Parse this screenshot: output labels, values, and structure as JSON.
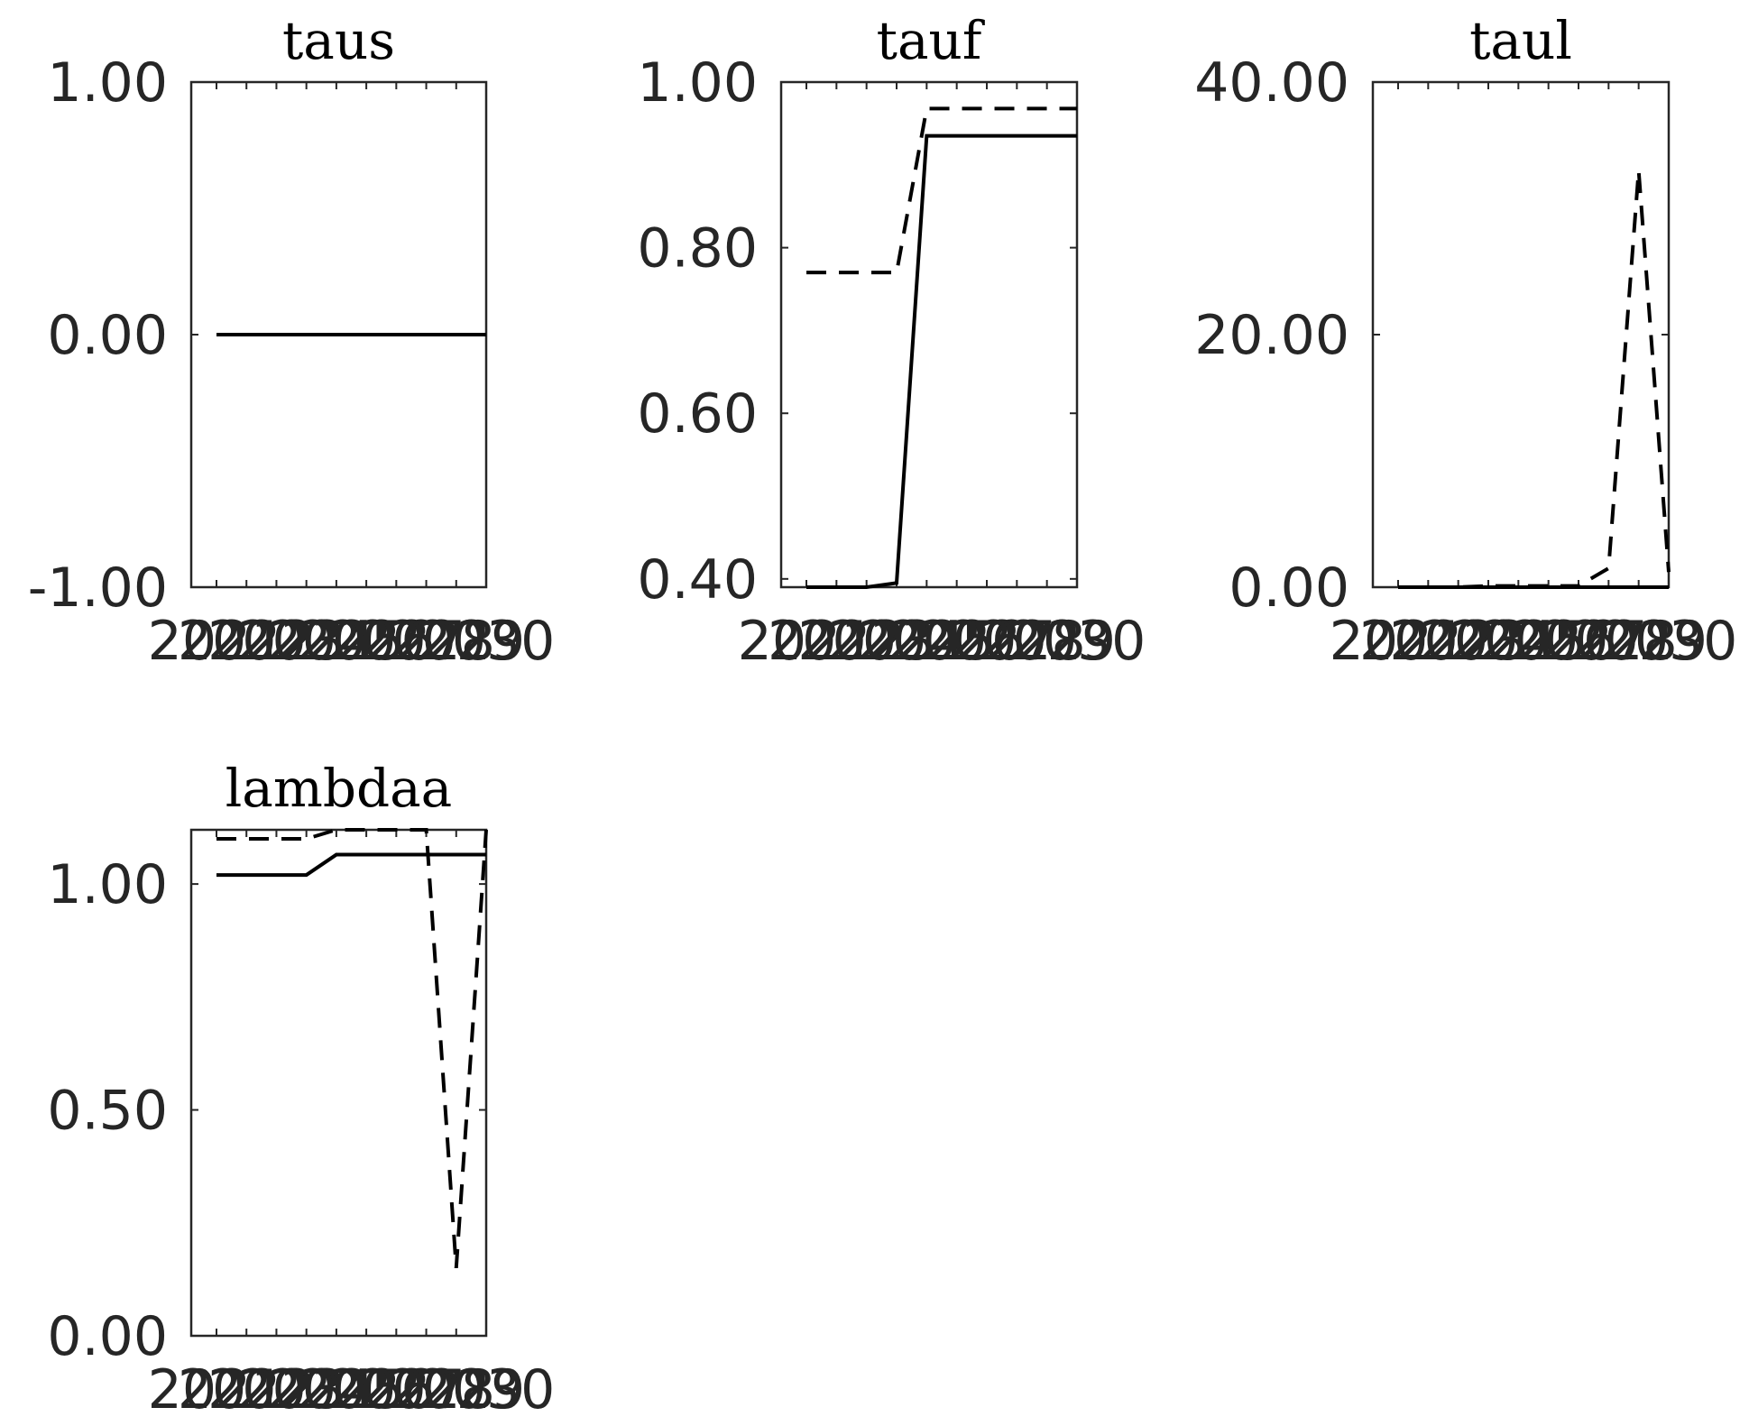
{
  "chart_data": [
    {
      "type": "line",
      "title": "taus",
      "x": [
        2021,
        2022,
        2023,
        2024,
        2025,
        2026,
        2027,
        2028,
        2029,
        2030
      ],
      "xtick_labels": [
        "2021",
        "2022",
        "2023",
        "2024",
        "2025",
        "2026",
        "2027",
        "2028",
        "2029",
        "2030"
      ],
      "ylim": [
        -1,
        1
      ],
      "yticks": [
        -1,
        0,
        1
      ],
      "ytick_labels": [
        "-1.00",
        "0.00",
        "1.00"
      ],
      "series": [
        {
          "style": "solid",
          "values": [
            0,
            0,
            0,
            0,
            0,
            0,
            0,
            0,
            0,
            0
          ]
        }
      ]
    },
    {
      "type": "line",
      "title": "tauf",
      "x": [
        2021,
        2022,
        2023,
        2024,
        2025,
        2026,
        2027,
        2028,
        2029,
        2030
      ],
      "xtick_labels": [
        "2021",
        "2022",
        "2023",
        "2024",
        "2025",
        "2026",
        "2027",
        "2028",
        "2029",
        "2030"
      ],
      "ylim": [
        0.39,
        1.0
      ],
      "yticks": [
        0.4,
        0.6,
        0.8,
        1.0
      ],
      "ytick_labels": [
        "0.40",
        "0.60",
        "0.80",
        "1.00"
      ],
      "series": [
        {
          "style": "solid",
          "values": [
            0.39,
            0.39,
            0.39,
            0.395,
            0.935,
            0.935,
            0.935,
            0.935,
            0.935,
            0.935
          ]
        },
        {
          "style": "dashed",
          "values": [
            0.77,
            0.77,
            0.77,
            0.77,
            0.968,
            0.968,
            0.968,
            0.968,
            0.968,
            0.968
          ]
        }
      ]
    },
    {
      "type": "line",
      "title": "taul",
      "x": [
        2021,
        2022,
        2023,
        2024,
        2025,
        2026,
        2027,
        2028,
        2029,
        2030
      ],
      "xtick_labels": [
        "2021",
        "2022",
        "2023",
        "2024",
        "2025",
        "2026",
        "2027",
        "2028",
        "2029",
        "2030"
      ],
      "ylim": [
        0,
        40
      ],
      "yticks": [
        0,
        20,
        40
      ],
      "ytick_labels": [
        "0.00",
        "20.00",
        "40.00"
      ],
      "series": [
        {
          "style": "solid",
          "values": [
            0,
            0,
            0,
            0,
            0,
            0,
            0,
            0,
            0,
            0
          ]
        },
        {
          "style": "dashed",
          "values": [
            0,
            0,
            0,
            0.1,
            0.1,
            0.1,
            0.1,
            1.5,
            33,
            1.2
          ]
        }
      ]
    },
    {
      "type": "line",
      "title": "lambdaa",
      "x": [
        2021,
        2022,
        2023,
        2024,
        2025,
        2026,
        2027,
        2028,
        2029,
        2030
      ],
      "xtick_labels": [
        "2021",
        "2022",
        "2023",
        "2024",
        "2025",
        "2026",
        "2027",
        "2028",
        "2029",
        "2030"
      ],
      "ylim": [
        0,
        1.12
      ],
      "yticks": [
        0,
        0.5,
        1.0
      ],
      "ytick_labels": [
        "0.00",
        "0.50",
        "1.00"
      ],
      "series": [
        {
          "style": "solid",
          "values": [
            1.02,
            1.02,
            1.02,
            1.02,
            1.065,
            1.065,
            1.065,
            1.065,
            1.065,
            1.065
          ]
        },
        {
          "style": "dashed",
          "values": [
            1.1,
            1.1,
            1.1,
            1.1,
            1.12,
            1.12,
            1.12,
            1.12,
            0.15,
            1.12
          ]
        }
      ]
    }
  ]
}
